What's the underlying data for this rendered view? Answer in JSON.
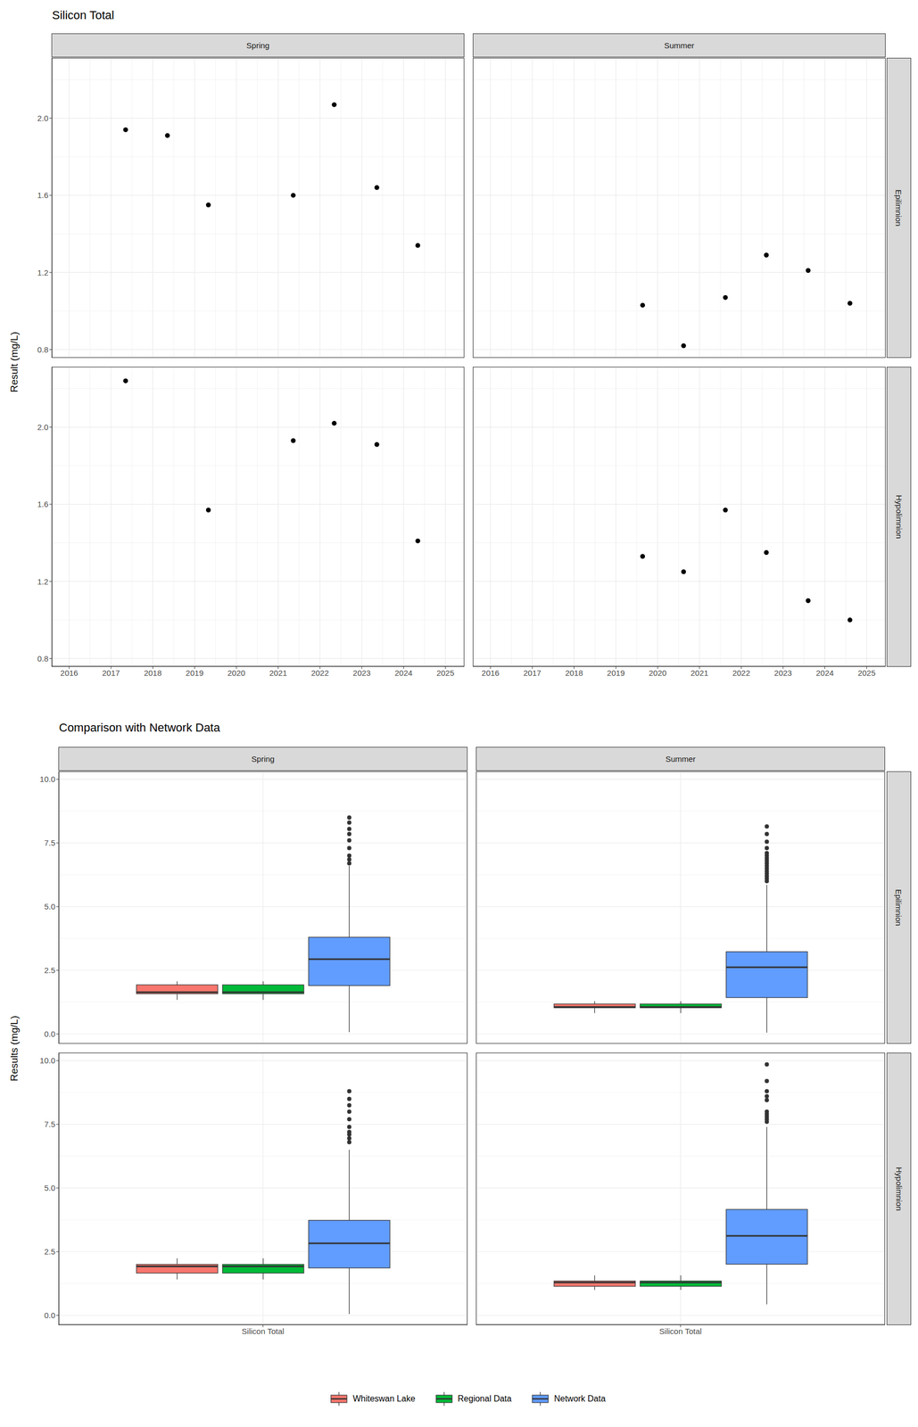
{
  "chart_data": [
    {
      "type": "scatter",
      "title": "Silicon Total",
      "y_label": "Result (mg/L)",
      "columns": [
        "Spring",
        "Summer"
      ],
      "rows": [
        "Epilimnion",
        "Hypolimnion"
      ],
      "xlim": [
        2015.59,
        2025.44
      ],
      "xticks": [
        2016,
        2017,
        2018,
        2019,
        2020,
        2021,
        2022,
        2023,
        2024,
        2025
      ],
      "ylim": [
        0.76,
        2.31
      ],
      "yticks": [
        0.8,
        1.2,
        1.6,
        {
          "value": 2,
          "label": "2.0"
        }
      ],
      "grid": true,
      "color": "#000000",
      "marker": "circle",
      "panels": [
        {
          "column": "Spring",
          "row": "Epilimnion",
          "x": [
            2017.35,
            2018.35,
            2019.33,
            2021.36,
            2022.34,
            2023.36,
            2024.34
          ],
          "values": [
            1.94,
            1.91,
            1.55,
            1.6,
            2.07,
            1.64,
            1.34
          ]
        },
        {
          "column": "Summer",
          "row": "Epilimnion",
          "x": [
            2019.64,
            2020.62,
            2021.62,
            2022.6,
            2023.6,
            2024.6
          ],
          "values": [
            1.03,
            0.82,
            1.07,
            1.29,
            1.21,
            1.04
          ]
        },
        {
          "column": "Spring",
          "row": "Hypolimnion",
          "x": [
            2017.35,
            2019.33,
            2021.36,
            2022.34,
            2023.36,
            2024.34
          ],
          "values": [
            2.24,
            1.57,
            1.93,
            2.02,
            1.91,
            1.41
          ]
        },
        {
          "column": "Summer",
          "row": "Hypolimnion",
          "x": [
            2019.64,
            2020.62,
            2021.62,
            2022.6,
            2023.6,
            2024.6
          ],
          "values": [
            1.33,
            1.25,
            1.57,
            1.35,
            1.1,
            1.0
          ]
        }
      ]
    },
    {
      "type": "box",
      "title": "Comparison with Network Data",
      "y_label": "Results (mg/L)",
      "columns": [
        "Spring",
        "Summer"
      ],
      "rows": [
        "Epilimnion",
        "Hypolimnion"
      ],
      "categories": [
        "Silicon Total"
      ],
      "ylim": [
        -0.36,
        10.29
      ],
      "yticks": [
        {
          "value": 0,
          "label": "0.0"
        },
        2.5,
        {
          "value": 5,
          "label": "5.0"
        },
        7.5,
        {
          "value": 10,
          "label": "10.0"
        }
      ],
      "grid": true,
      "legend": "bottom",
      "series": [
        {
          "name": "Whiteswan Lake",
          "color": "#F8766D"
        },
        {
          "name": "Regional Data",
          "color": "#00BA38"
        },
        {
          "name": "Network Data",
          "color": "#619CFF"
        }
      ],
      "panels": [
        {
          "column": "Spring",
          "row": "Epilimnion",
          "boxes": [
            {
              "series": "Whiteswan Lake",
              "min": 1.34,
              "q1": 1.58,
              "median": 1.64,
              "q3": 1.93,
              "max": 2.07,
              "outliers": []
            },
            {
              "series": "Regional Data",
              "min": 1.34,
              "q1": 1.58,
              "median": 1.64,
              "q3": 1.93,
              "max": 2.07,
              "outliers": []
            },
            {
              "series": "Network Data",
              "min": 0.07,
              "q1": 1.9,
              "median": 2.94,
              "q3": 3.8,
              "max": 6.6,
              "outliers": [
                6.7,
                6.85,
                7.0,
                7.3,
                7.6,
                7.85,
                8.05,
                8.3,
                8.5
              ]
            }
          ]
        },
        {
          "column": "Summer",
          "row": "Epilimnion",
          "boxes": [
            {
              "series": "Whiteswan Lake",
              "min": 0.82,
              "q1": 1.03,
              "median": 1.06,
              "q3": 1.18,
              "max": 1.29,
              "outliers": []
            },
            {
              "series": "Regional Data",
              "min": 0.82,
              "q1": 1.03,
              "median": 1.06,
              "q3": 1.18,
              "max": 1.29,
              "outliers": []
            },
            {
              "series": "Network Data",
              "min": 0.05,
              "q1": 1.43,
              "median": 2.62,
              "q3": 3.23,
              "max": 5.85,
              "outliers": [
                6.0,
                6.1,
                6.2,
                6.3,
                6.4,
                6.5,
                6.6,
                6.7,
                6.8,
                6.9,
                7.0,
                7.1,
                7.3,
                7.55,
                7.85,
                8.15
              ]
            }
          ]
        },
        {
          "column": "Spring",
          "row": "Hypolimnion",
          "boxes": [
            {
              "series": "Whiteswan Lake",
              "min": 1.41,
              "q1": 1.66,
              "median": 1.92,
              "q3": 2.0,
              "max": 2.24,
              "outliers": []
            },
            {
              "series": "Regional Data",
              "min": 1.41,
              "q1": 1.66,
              "median": 1.92,
              "q3": 2.0,
              "max": 2.24,
              "outliers": []
            },
            {
              "series": "Network Data",
              "min": 0.05,
              "q1": 1.86,
              "median": 2.83,
              "q3": 3.73,
              "max": 6.5,
              "outliers": [
                6.8,
                6.95,
                7.1,
                7.2,
                7.4,
                7.7,
                8.0,
                8.25,
                8.5,
                8.8
              ]
            }
          ]
        },
        {
          "column": "Summer",
          "row": "Hypolimnion",
          "boxes": [
            {
              "series": "Whiteswan Lake",
              "min": 1.0,
              "q1": 1.14,
              "median": 1.29,
              "q3": 1.35,
              "max": 1.57,
              "outliers": []
            },
            {
              "series": "Regional Data",
              "min": 1.0,
              "q1": 1.14,
              "median": 1.29,
              "q3": 1.35,
              "max": 1.57,
              "outliers": []
            },
            {
              "series": "Network Data",
              "min": 0.43,
              "q1": 2.01,
              "median": 3.12,
              "q3": 4.16,
              "max": 7.4,
              "outliers": [
                7.6,
                7.7,
                7.8,
                7.9,
                8.0,
                8.45,
                8.6,
                8.8,
                9.2,
                9.85
              ]
            }
          ]
        }
      ]
    }
  ]
}
